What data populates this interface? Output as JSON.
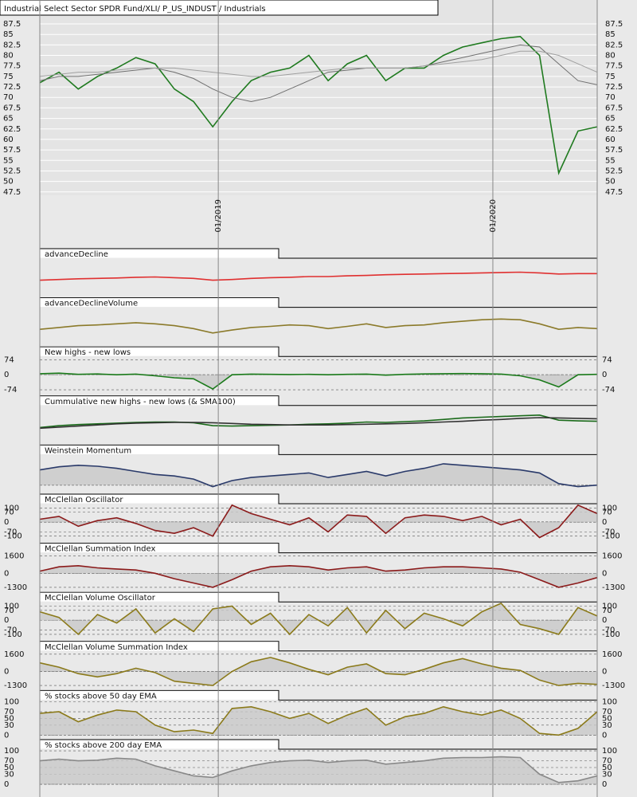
{
  "chart_data": [
    {
      "type": "line",
      "title": "Industrial Select Sector SPDR Fund/XLI/ P_US_INDUST / Industrials",
      "x": [
        2018.35,
        2018.42,
        2018.49,
        2018.56,
        2018.63,
        2018.7,
        2018.77,
        2018.84,
        2018.91,
        2018.98,
        2019.05,
        2019.12,
        2019.19,
        2019.26,
        2019.33,
        2019.4,
        2019.47,
        2019.54,
        2019.61,
        2019.68,
        2019.75,
        2019.82,
        2019.89,
        2019.96,
        2020.03,
        2020.1,
        2020.17,
        2020.24,
        2020.31,
        2020.38
      ],
      "xlim": [
        2018.35,
        2020.38
      ],
      "xticks": [
        {
          "value": 2019,
          "label": "01/2019"
        },
        {
          "value": 2020,
          "label": "01/2020"
        }
      ],
      "ylim": [
        46.7,
        93.2
      ],
      "yticks": [
        47.5,
        50,
        52.5,
        55,
        57.5,
        60,
        62.5,
        65,
        67.5,
        70,
        72.5,
        75,
        77.5,
        80,
        82.5,
        85,
        87.5
      ],
      "grid": true,
      "series": [
        {
          "color": "#1f7a1f",
          "values": [
            73.5,
            76,
            72,
            75,
            77,
            79.5,
            78,
            72,
            69,
            63,
            69,
            74,
            76,
            77,
            80,
            74,
            78,
            80,
            74,
            77,
            77,
            80,
            82,
            83,
            84,
            84.5,
            80,
            52,
            62,
            63
          ]
        },
        {
          "color": "#707070",
          "values": [
            74,
            75,
            75,
            75.5,
            76,
            76.5,
            77,
            76,
            74.5,
            72,
            70,
            69,
            70,
            72,
            74,
            76,
            76.5,
            77,
            77,
            77,
            77.5,
            78.5,
            79.5,
            80.5,
            81.5,
            82.5,
            82,
            78,
            74,
            73
          ]
        },
        {
          "color": "#a0a0a0",
          "values": [
            75,
            75.5,
            76,
            76,
            76.5,
            77,
            77,
            77,
            76.5,
            76,
            75.5,
            75,
            75,
            75.5,
            76,
            76.5,
            77,
            77,
            77,
            77,
            77.5,
            78,
            78.5,
            79,
            80,
            81,
            81,
            80,
            78,
            76
          ]
        }
      ]
    },
    {
      "type": "line",
      "title": "advanceDecline",
      "ylim": [
        0,
        100
      ],
      "series": [
        {
          "color": "#e03030",
          "values": [
            40,
            42,
            44,
            45,
            46,
            48,
            49,
            47,
            45,
            40,
            42,
            45,
            47,
            48,
            50,
            50,
            52,
            53,
            55,
            56,
            57,
            58,
            59,
            60,
            61,
            62,
            60,
            57,
            58,
            58
          ]
        }
      ]
    },
    {
      "type": "line",
      "title": "advanceDeclineVolume",
      "ylim": [
        0,
        100
      ],
      "series": [
        {
          "color": "#8b7a2a",
          "values": [
            40,
            45,
            50,
            52,
            55,
            58,
            55,
            50,
            42,
            30,
            38,
            45,
            48,
            52,
            50,
            42,
            48,
            55,
            45,
            50,
            52,
            58,
            62,
            66,
            68,
            66,
            55,
            40,
            45,
            42
          ]
        }
      ]
    },
    {
      "type": "line",
      "title": "New highs - new lows",
      "ylim": [
        -90,
        90
      ],
      "yticks": [
        74,
        0,
        -74
      ],
      "fill": true,
      "series": [
        {
          "color": "#1a7a1a",
          "values": [
            5,
            8,
            2,
            4,
            0,
            3,
            -5,
            -15,
            -20,
            -70,
            0,
            3,
            2,
            1,
            2,
            0,
            2,
            3,
            -2,
            2,
            4,
            5,
            6,
            5,
            3,
            -5,
            -25,
            -60,
            0,
            2
          ]
        }
      ]
    },
    {
      "type": "line",
      "title": "Cummulative new highs - new lows (& SMA100)",
      "ylim": [
        0,
        100
      ],
      "series": [
        {
          "color": "#1a6a1a",
          "values": [
            40,
            45,
            48,
            50,
            52,
            54,
            55,
            55,
            53,
            45,
            44,
            45,
            46,
            47,
            49,
            50,
            52,
            55,
            54,
            56,
            58,
            62,
            66,
            68,
            70,
            72,
            74,
            60,
            58,
            57
          ]
        },
        {
          "color": "#333333",
          "values": [
            38,
            41,
            44,
            47,
            50,
            52,
            53,
            54,
            54,
            53,
            51,
            49,
            48,
            47,
            47,
            47,
            48,
            49,
            50,
            51,
            53,
            55,
            57,
            60,
            62,
            65,
            67,
            66,
            65,
            64
          ]
        }
      ]
    },
    {
      "type": "line",
      "title": "Weinstein Momentum",
      "ylim": [
        -20,
        100
      ],
      "fill": true,
      "series": [
        {
          "color": "#2a3a6a",
          "values": [
            50,
            60,
            65,
            62,
            55,
            45,
            35,
            30,
            20,
            -5,
            15,
            25,
            30,
            35,
            40,
            25,
            35,
            45,
            30,
            45,
            55,
            70,
            65,
            60,
            55,
            50,
            40,
            5,
            -5,
            0
          ]
        }
      ]
    },
    {
      "type": "line",
      "title": "McClellan Oscillator",
      "ylim": [
        -130,
        130
      ],
      "yticks": [
        100,
        70,
        0,
        -70,
        -100
      ],
      "fill": true,
      "series": [
        {
          "color": "#8b1a1a",
          "values": [
            20,
            40,
            -30,
            10,
            30,
            -10,
            -60,
            -80,
            -40,
            -100,
            120,
            60,
            20,
            -20,
            30,
            -70,
            50,
            40,
            -80,
            30,
            50,
            40,
            10,
            40,
            -20,
            20,
            -110,
            -40,
            120,
            60
          ]
        }
      ]
    },
    {
      "type": "line",
      "title": "McClellan Summation Index",
      "ylim": [
        -1500,
        1900
      ],
      "yticks": [
        1600,
        0,
        -1300
      ],
      "fill": true,
      "series": [
        {
          "color": "#8b1a1a",
          "values": [
            200,
            600,
            700,
            500,
            400,
            300,
            0,
            -500,
            -900,
            -1300,
            -600,
            200,
            600,
            700,
            600,
            300,
            500,
            600,
            200,
            300,
            500,
            600,
            600,
            500,
            400,
            100,
            -600,
            -1300,
            -900,
            -400
          ]
        }
      ]
    },
    {
      "type": "line",
      "title": "McClellan Volume Oscillator",
      "ylim": [
        -130,
        130
      ],
      "yticks": [
        100,
        70,
        0,
        -70,
        -100
      ],
      "fill": true,
      "series": [
        {
          "color": "#8b7a1a",
          "values": [
            60,
            20,
            -100,
            40,
            -20,
            80,
            -90,
            10,
            -80,
            80,
            100,
            -30,
            50,
            -100,
            40,
            -40,
            90,
            -90,
            70,
            -60,
            50,
            10,
            -40,
            60,
            120,
            -30,
            -60,
            -100,
            90,
            30
          ]
        }
      ]
    },
    {
      "type": "line",
      "title": "McClellan Volume Summation Index",
      "ylim": [
        -1500,
        1900
      ],
      "yticks": [
        1600,
        0,
        -1300
      ],
      "fill": true,
      "series": [
        {
          "color": "#8b7a1a",
          "values": [
            800,
            400,
            -200,
            -500,
            -200,
            300,
            -100,
            -900,
            -1100,
            -1300,
            0,
            900,
            1300,
            800,
            200,
            -300,
            400,
            700,
            -200,
            -300,
            200,
            800,
            1200,
            700,
            300,
            100,
            -800,
            -1300,
            -1100,
            -1200
          ]
        }
      ]
    },
    {
      "type": "line",
      "title": "% stocks above 50 day EMA",
      "ylim": [
        -5,
        105
      ],
      "yticks": [
        100,
        70,
        50,
        30,
        0
      ],
      "fill": true,
      "series": [
        {
          "color": "#8b7a1a",
          "values": [
            65,
            70,
            40,
            60,
            75,
            70,
            30,
            10,
            15,
            5,
            80,
            85,
            70,
            50,
            65,
            35,
            60,
            80,
            30,
            55,
            65,
            85,
            70,
            60,
            75,
            50,
            5,
            0,
            20,
            70
          ]
        }
      ]
    },
    {
      "type": "line",
      "title": "% stocks above 200 day EMA",
      "ylim": [
        -5,
        105
      ],
      "yticks": [
        100,
        70,
        50,
        30,
        0
      ],
      "fill": true,
      "series": [
        {
          "color": "#888888",
          "values": [
            70,
            75,
            70,
            72,
            78,
            75,
            55,
            40,
            25,
            20,
            40,
            55,
            65,
            70,
            72,
            65,
            70,
            72,
            60,
            65,
            70,
            78,
            80,
            80,
            82,
            80,
            30,
            5,
            10,
            25
          ]
        }
      ]
    }
  ]
}
